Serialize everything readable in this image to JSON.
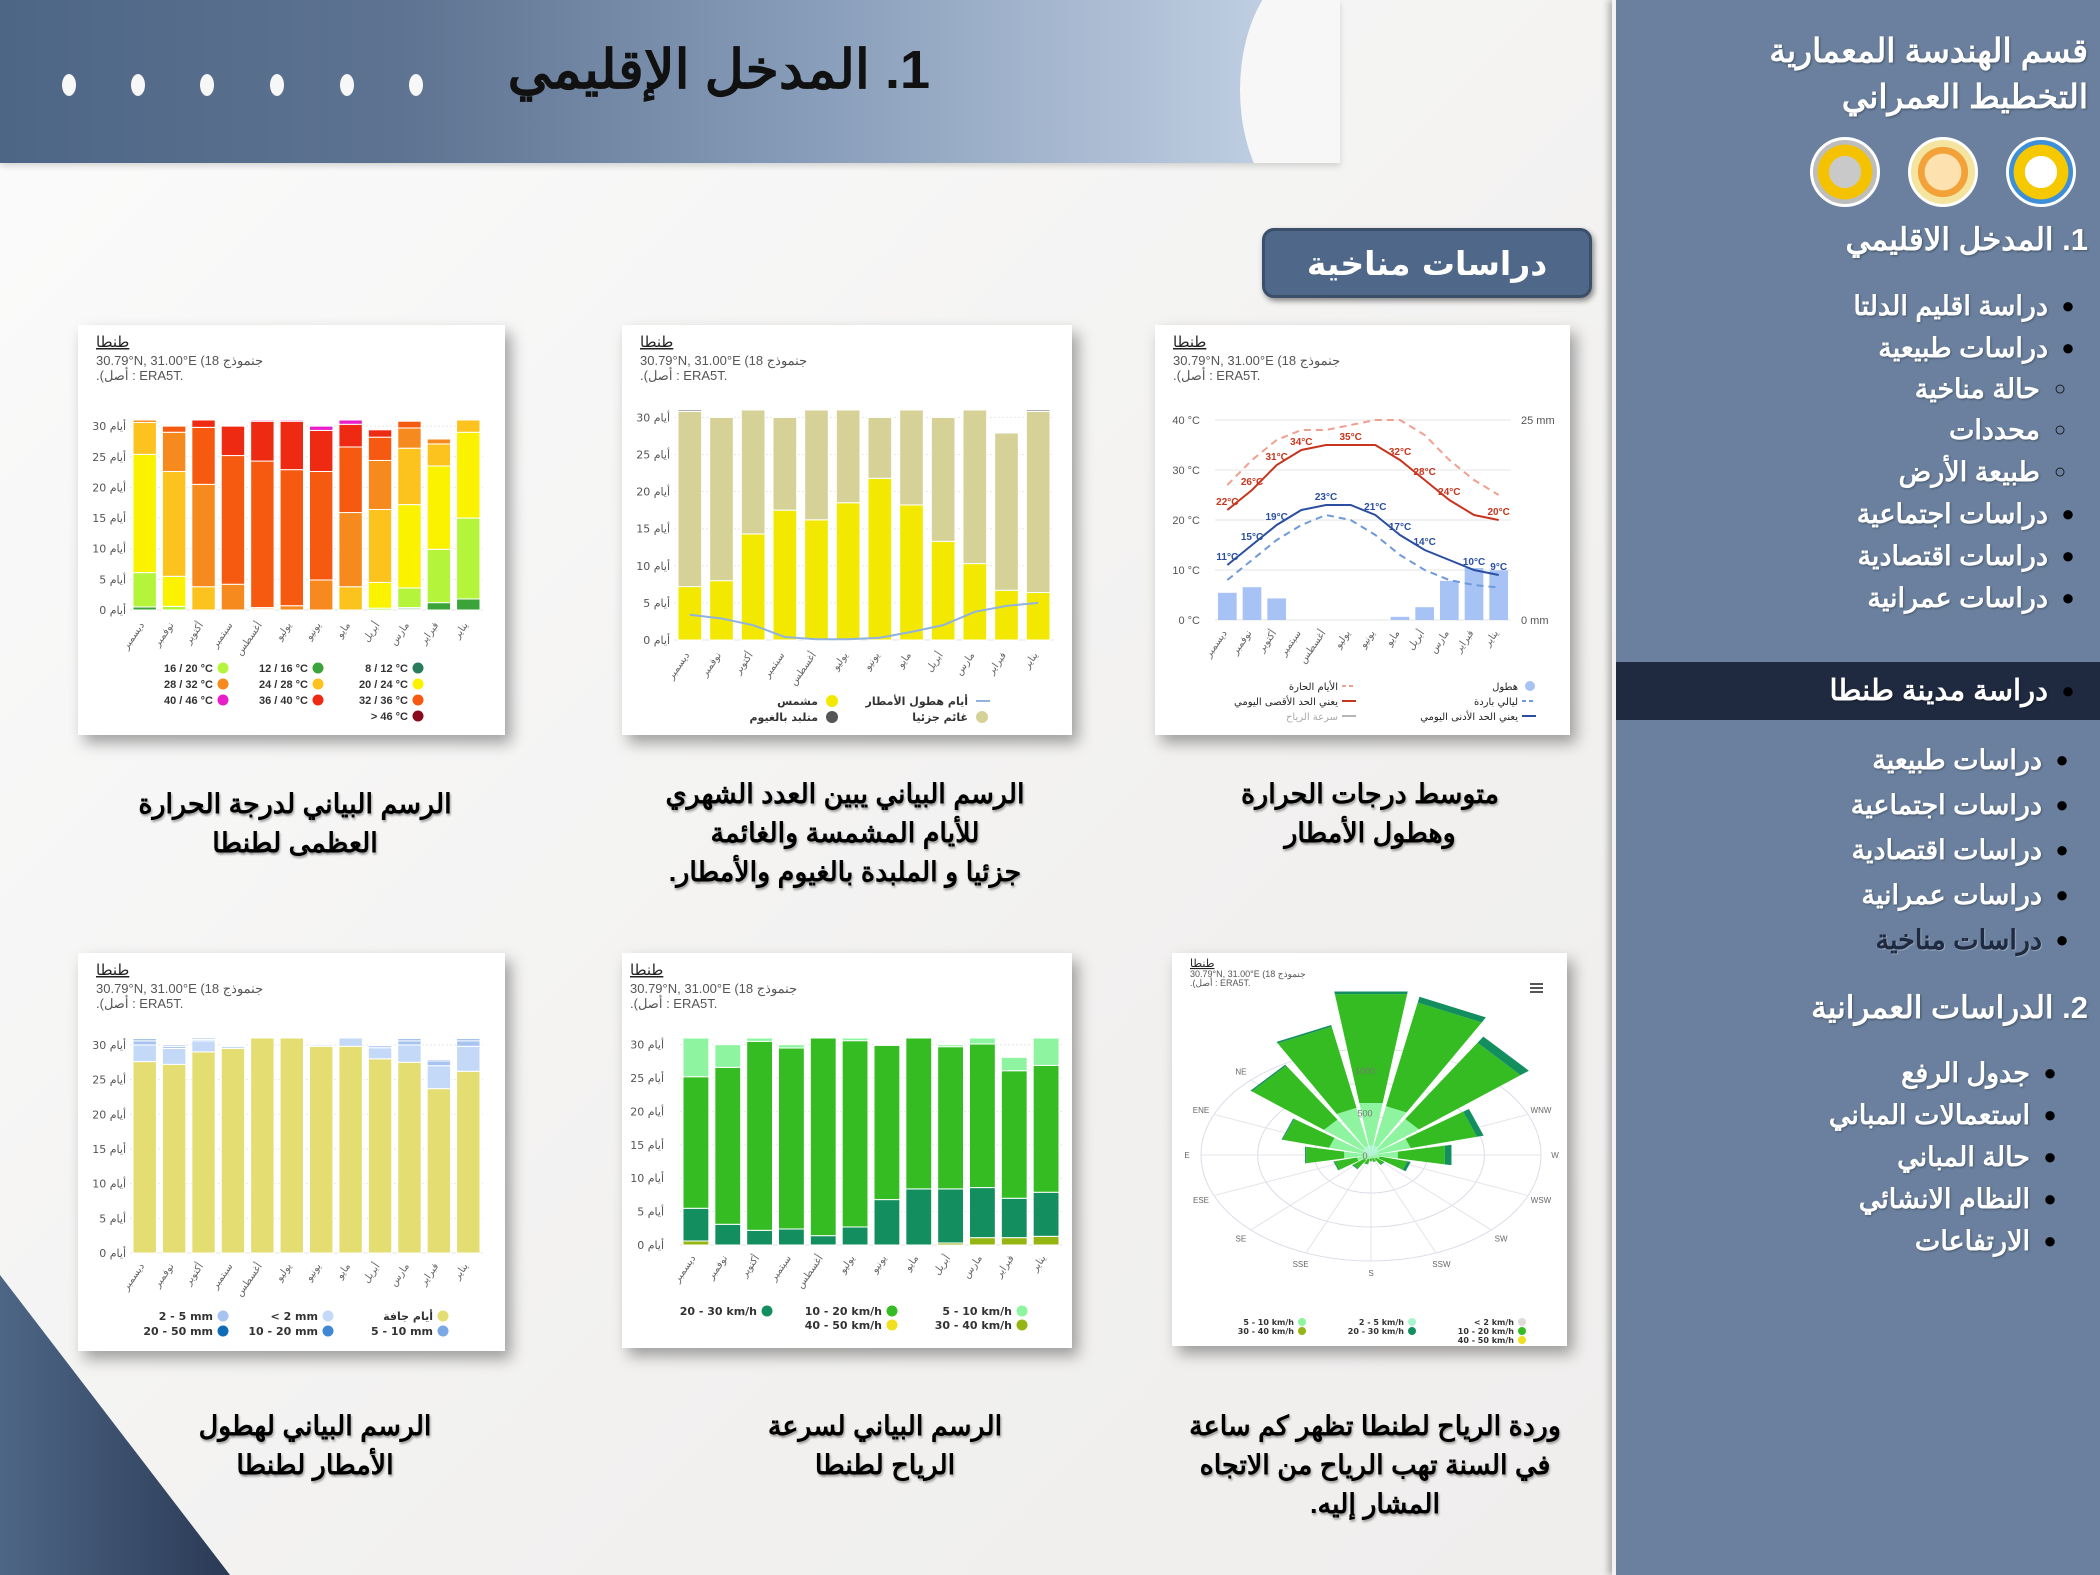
{
  "header": {
    "title": "1.  المدخل الإقليمي",
    "dots": 6
  },
  "badge": {
    "label": "دراسات مناخية"
  },
  "sidebar": {
    "title_line1": "قسم الهندسة المعمارية",
    "title_line2": "التخطيط العمراني",
    "logos": [
      "tanta-university-logo",
      "faculty-logo",
      "engineering-gear-logo"
    ],
    "section1": {
      "heading": "1. المدخل الاقليمي",
      "items": [
        {
          "label": "دراسة اقليم الدلتا",
          "level": 1
        },
        {
          "label": "دراسات طبيعية",
          "level": 1
        },
        {
          "label": "حالة مناخية",
          "level": 2
        },
        {
          "label": "محددات",
          "level": 2
        },
        {
          "label": "طبيعة الأرض",
          "level": 2
        },
        {
          "label": "دراسات اجتماعية",
          "level": 1
        },
        {
          "label": "دراسات اقتصادية",
          "level": 1
        },
        {
          "label": "دراسات عمرانية",
          "level": 1
        }
      ]
    },
    "active_item": "دراسة مدينة طنطا",
    "city_items": [
      {
        "label": "دراسات طبيعية"
      },
      {
        "label": "دراسات اجتماعية"
      },
      {
        "label": "دراسات اقتصادية"
      },
      {
        "label": "دراسات عمرانية"
      },
      {
        "label": "دراسات مناخية",
        "current": true
      }
    ],
    "section2": {
      "heading": "2. الدراسات العمرانية",
      "items": [
        {
          "label": "جدول الرفع"
        },
        {
          "label": "استعمالات المباني"
        },
        {
          "label": "حالة المباني"
        },
        {
          "label": "النظام الانشائي"
        },
        {
          "label": "الارتفاعات"
        }
      ]
    }
  },
  "chart_common": {
    "city": "طنطا",
    "coords_line": "30.79°N, 31.00°E (18 جنموذج",
    "source_line": ".(أصل : ERA5T.",
    "months": [
      "ديسمبر",
      "نوفمبر",
      "أكتوبر",
      "سبتمبر",
      "أغسطس",
      "يوليو",
      "يونيو",
      "مايو",
      "أبريل",
      "مارس",
      "فبراير",
      "يناير"
    ],
    "days_ticks": [
      "0 أيام",
      "5 أيام",
      "10 أيام",
      "15 أيام",
      "20 أيام",
      "25 أيام",
      "30 أيام"
    ]
  },
  "captions": {
    "temp_precip": [
      "متوسط درجات الحرارة",
      "وهطول الأمطار"
    ],
    "cloudy": [
      "الرسم البياني يبين العدد الشهري",
      "للأيام المشمسة والغائمة",
      "جزئيا و الملبدة بالغيوم والأمطار."
    ],
    "max_temp": [
      "الرسم البياني لدرجة الحرارة",
      "العظمى لطنطا"
    ],
    "wind_rose": [
      "وردة الرياح لطنطا تظهر كم ساعة",
      "في السنة تهب الرياح من الاتجاه",
      "المشار إليه."
    ],
    "wind_speed": [
      "الرسم البياني لسرعة",
      "الرياح لطنطا"
    ],
    "precip": [
      "الرسم البياني لهطول",
      "الأمطار لطنطا"
    ]
  },
  "chart_data": [
    {
      "id": "temp_precip",
      "type": "line",
      "title": "طنطا",
      "categories": [
        "ديسمبر",
        "نوفمبر",
        "أكتوبر",
        "سبتمبر",
        "أغسطس",
        "يوليو",
        "يونيو",
        "مايو",
        "أبريل",
        "مارس",
        "فبراير",
        "يناير"
      ],
      "ylabel_left": "°C",
      "ylim_left": [
        0,
        40
      ],
      "yticks_left": [
        "0 °C",
        "10 °C",
        "20 °C",
        "30 °C",
        "40 °C"
      ],
      "ylabel_right": "mm",
      "ylim_right": [
        0,
        25
      ],
      "yticks_right": [
        "0 mm",
        "25 mm"
      ],
      "series": [
        {
          "name": "يعني الحد الأقصى اليومي",
          "type": "line",
          "color": "#c8351e",
          "values": [
            22,
            26,
            31,
            34,
            35,
            35,
            35,
            32,
            28,
            24,
            21,
            20
          ],
          "labels": [
            "22°C",
            "26°C",
            "31°C",
            "34°C",
            "",
            "35°C",
            "",
            "32°C",
            "28°C",
            "24°C",
            "",
            "20°C"
          ]
        },
        {
          "name": "يعني الحد الأدنى اليومي",
          "type": "line",
          "color": "#2a4fa0",
          "values": [
            11,
            15,
            19,
            22,
            23,
            23,
            21,
            17,
            14,
            12,
            10,
            9
          ],
          "labels": [
            "11°C",
            "15°C",
            "19°C",
            "",
            "23°C",
            "",
            "21°C",
            "17°C",
            "14°C",
            "",
            "10°C",
            "9°C"
          ]
        },
        {
          "name": "الأيام الحارة",
          "type": "dashed",
          "color": "#f0a090",
          "values": [
            27,
            32,
            36,
            38,
            38,
            39,
            40,
            40,
            37,
            32,
            28,
            25
          ]
        },
        {
          "name": "ليالي باردة",
          "type": "dashed",
          "color": "#6f9ad8",
          "values": [
            8,
            12,
            16,
            19,
            21,
            20,
            17,
            13,
            10,
            8,
            7,
            6.5
          ]
        },
        {
          "name": "هطول",
          "type": "bar",
          "axis": "right",
          "color": "#a7c3f5",
          "values": [
            3.4,
            4.1,
            2.7,
            0,
            0,
            0,
            0,
            0.4,
            1.6,
            4.9,
            6.5,
            6.2
          ]
        },
        {
          "name": "سرعة الرياح",
          "type": "line",
          "color": "#b0b0b0",
          "values": []
        }
      ],
      "legend": [
        {
          "label": "هطول",
          "swatch": "dot",
          "color": "#a7c3f5"
        },
        {
          "label": "ليالي باردة",
          "swatch": "dash",
          "color": "#6f9ad8"
        },
        {
          "label": "يعني الحد الأدنى اليومي",
          "swatch": "line",
          "color": "#2a4fa0"
        },
        {
          "label": "الأيام الحارة",
          "swatch": "dash",
          "color": "#f0a090"
        },
        {
          "label": "يعني الحد الأقصى اليومي",
          "swatch": "line",
          "color": "#c8351e"
        },
        {
          "label": "سرعة الرياح",
          "swatch": "line",
          "color": "#b5b5b5"
        }
      ]
    },
    {
      "id": "cloudy",
      "type": "bar",
      "stacked": true,
      "title": "طنطا",
      "categories": [
        "ديسمبر",
        "نوفمبر",
        "أكتوبر",
        "سبتمبر",
        "أغسطس",
        "يوليو",
        "يونيو",
        "مايو",
        "أبريل",
        "مارس",
        "فبراير",
        "يناير"
      ],
      "ylim": [
        0,
        31
      ],
      "ylabel": "أيام",
      "series": [
        {
          "name": "مشمس",
          "color": "#f3e800",
          "values": [
            7.2,
            8,
            14.3,
            17.5,
            16.2,
            18.5,
            21.8,
            18.2,
            13.3,
            10.3,
            6.7,
            6.4
          ]
        },
        {
          "name": "غائم جزئيا",
          "color": "#d6d197",
          "values": [
            23.6,
            22,
            16.7,
            12.5,
            14.8,
            12.5,
            8.2,
            12.8,
            16.7,
            20.7,
            21.2,
            24.4
          ]
        },
        {
          "name": "متلبد بالغيوم",
          "color": "#555555",
          "values": [
            0.2,
            0,
            0,
            0,
            0,
            0,
            0,
            0,
            0,
            0,
            0.1,
            0.2
          ]
        },
        {
          "name": "أيام هطول الأمطار",
          "type": "line",
          "color": "#8fb2e0",
          "values": [
            3.4,
            2.9,
            2.0,
            0.4,
            0.1,
            0.1,
            0.3,
            1.1,
            2.0,
            3.8,
            4.6,
            5.0
          ]
        }
      ]
    },
    {
      "id": "max_temp",
      "type": "bar",
      "stacked": true,
      "title": "طنطا",
      "categories": [
        "ديسمبر",
        "نوفمبر",
        "أكتوبر",
        "سبتمبر",
        "أغسطس",
        "يوليو",
        "يونيو",
        "مايو",
        "أبريل",
        "مارس",
        "فبراير",
        "يناير"
      ],
      "ylim": [
        0,
        31
      ],
      "ylabel": "أيام",
      "series": [
        {
          "name": "8 / 12 °C",
          "color": "#2a7a5c",
          "values": [
            0,
            0,
            0,
            0,
            0,
            0,
            0,
            0,
            0,
            0.2,
            0,
            0
          ]
        },
        {
          "name": "12 / 16 °C",
          "color": "#3aa33a",
          "values": [
            0.5,
            0,
            0,
            0,
            0,
            0,
            0,
            0,
            0,
            0.2,
            1.2,
            1.8
          ]
        },
        {
          "name": "16 / 20 °C",
          "color": "#b4f53c",
          "values": [
            5.6,
            0.6,
            0,
            0,
            0,
            0,
            0,
            0,
            0.3,
            3.2,
            8.7,
            13.2
          ]
        },
        {
          "name": "20 / 24 °C",
          "color": "#fbf200",
          "values": [
            19.3,
            4.9,
            0,
            0,
            0,
            0,
            0,
            0,
            4.2,
            13.6,
            13.6,
            14.0
          ]
        },
        {
          "name": "24 / 28 °C",
          "color": "#fcc21e",
          "values": [
            5.2,
            17.1,
            3.8,
            0,
            0.2,
            0,
            0,
            3.8,
            11.9,
            9.2,
            3.6,
            2.0
          ]
        },
        {
          "name": "28 / 32 °C",
          "color": "#f68a1e",
          "values": [
            0.4,
            6.4,
            16.7,
            4.2,
            0.2,
            0.7,
            4.9,
            12.1,
            8.0,
            3.3,
            0.8,
            0
          ]
        },
        {
          "name": "32 / 36 °C",
          "color": "#f65a10",
          "values": [
            0,
            1.0,
            9.3,
            21.0,
            23.9,
            22.2,
            17.7,
            10.7,
            3.8,
            1.1,
            0,
            0
          ]
        },
        {
          "name": "36 / 40 °C",
          "color": "#ee2a12",
          "values": [
            0,
            0,
            1.2,
            4.8,
            6.5,
            7.9,
            6.7,
            3.7,
            1.2,
            0,
            0,
            0
          ]
        },
        {
          "name": "40 / 46 °C",
          "color": "#e81ec8",
          "values": [
            0,
            0,
            0,
            0,
            0.2,
            0.2,
            0.7,
            0.7,
            0,
            0,
            0,
            0
          ]
        },
        {
          "name": "> 46 °C",
          "color": "#8a0a1c",
          "values": [
            0,
            0,
            0,
            0,
            0,
            0,
            0,
            0,
            0,
            0,
            0,
            0
          ]
        }
      ]
    },
    {
      "id": "precip",
      "type": "bar",
      "stacked": true,
      "title": "طنطا",
      "categories": [
        "ديسمبر",
        "نوفمبر",
        "أكتوبر",
        "سبتمبر",
        "أغسطس",
        "يوليو",
        "يونيو",
        "مايو",
        "أبريل",
        "مارس",
        "فبراير",
        "يناير"
      ],
      "ylim": [
        0,
        31
      ],
      "ylabel": "أيام",
      "series": [
        {
          "name": "أيام جافة",
          "color": "#e3dd72",
          "values": [
            27.6,
            27.2,
            29.0,
            29.5,
            31.0,
            31.0,
            29.8,
            29.8,
            28.0,
            27.5,
            23.7,
            26.2
          ]
        },
        {
          "name": "< 2 mm",
          "color": "#c3d9f7",
          "values": [
            2.4,
            2.3,
            1.6,
            0.3,
            0,
            0,
            0.2,
            1.2,
            1.6,
            2.5,
            3.3,
            3.6
          ]
        },
        {
          "name": "2 - 5 mm",
          "color": "#a7c3f0",
          "values": [
            0.6,
            0.3,
            0.2,
            0.1,
            0,
            0,
            0,
            0,
            0.3,
            0.6,
            0.7,
            0.8
          ]
        },
        {
          "name": "5 - 10 mm",
          "color": "#7aa8e4",
          "values": [
            0.3,
            0.2,
            0.2,
            0.1,
            0,
            0,
            0,
            0,
            0.1,
            0.3,
            0.2,
            0.3
          ]
        },
        {
          "name": "10 - 20 mm",
          "color": "#3f86d3",
          "values": [
            0.1,
            0,
            0,
            0,
            0,
            0,
            0,
            0,
            0,
            0.1,
            0.1,
            0.1
          ]
        },
        {
          "name": "20 - 50 mm",
          "color": "#0e6bb8",
          "values": [
            0,
            0,
            0,
            0,
            0,
            0,
            0,
            0,
            0,
            0,
            0,
            0
          ]
        }
      ]
    },
    {
      "id": "wind_speed",
      "type": "bar",
      "stacked": true,
      "title": "طنطا",
      "categories": [
        "ديسمبر",
        "نوفمبر",
        "أكتوبر",
        "سبتمبر",
        "أغسطس",
        "يوليو",
        "يونيو",
        "مايو",
        "أبريل",
        "مارس",
        "فبراير",
        "يناير"
      ],
      "ylim": [
        0,
        31
      ],
      "ylabel": "أيام",
      "series": [
        {
          "name": "30 - 40 km/h",
          "color": "#94b512",
          "values": [
            0.6,
            0,
            0,
            0,
            0,
            0,
            0,
            0,
            0.3,
            1.1,
            1.1,
            1.3
          ]
        },
        {
          "name": "20 - 30 km/h",
          "color": "#138f5f",
          "values": [
            4.9,
            3.1,
            2.2,
            2.4,
            1.4,
            2.7,
            6.8,
            8.4,
            8.1,
            7.5,
            5.9,
            6.6
          ]
        },
        {
          "name": "10 - 20 km/h",
          "color": "#34bc22",
          "values": [
            19.7,
            23.5,
            28.3,
            27.1,
            29.6,
            27.9,
            23.1,
            22.6,
            21.3,
            21.5,
            19.1,
            19.0
          ]
        },
        {
          "name": "5 - 10 km/h",
          "color": "#8ef4a0",
          "values": [
            5.8,
            3.4,
            0.5,
            0.5,
            0,
            0.4,
            0.1,
            0,
            0.3,
            0.9,
            2.0,
            4.1
          ]
        },
        {
          "name": "40 - 50 km/h",
          "color": "#f0e020",
          "values": [
            0,
            0,
            0,
            0,
            0,
            0,
            0,
            0,
            0,
            0,
            0,
            0
          ]
        }
      ]
    },
    {
      "id": "wind_rose",
      "type": "polar-bar",
      "title": "طنطا",
      "directions": [
        "N",
        "NNW",
        "NW",
        "WNW",
        "W",
        "WSW",
        "SW",
        "SSW",
        "S",
        "SSE",
        "SE",
        "ESE",
        "E",
        "ENE",
        "NE",
        "NNE"
      ],
      "rings": [
        "0",
        "500",
        "1000"
      ],
      "series": [
        {
          "name": "2 - 5 km/h",
          "color": "#a9f5cf",
          "values": [
            120,
            110,
            90,
            60,
            40,
            20,
            15,
            10,
            10,
            10,
            15,
            20,
            40,
            60,
            90,
            110
          ]
        },
        {
          "name": "5 - 10 km/h",
          "color": "#8ef4a0",
          "values": [
            500,
            480,
            430,
            300,
            200,
            60,
            40,
            30,
            30,
            40,
            60,
            110,
            200,
            320,
            420,
            460
          ]
        },
        {
          "name": "10 - 20 km/h",
          "color": "#34bc22",
          "values": [
            1300,
            1250,
            1100,
            600,
            420,
            250,
            80,
            40,
            30,
            60,
            120,
            200,
            340,
            420,
            780,
            980
          ]
        },
        {
          "name": "20 - 30 km/h",
          "color": "#138f5f",
          "values": [
            30,
            70,
            90,
            60,
            60,
            30,
            10,
            5,
            5,
            5,
            10,
            10,
            10,
            10,
            15,
            20
          ]
        },
        {
          "name": "< 2 km/h",
          "color": "#dddad8",
          "values": []
        },
        {
          "name": "30 - 40 km/h",
          "color": "#94b512",
          "values": []
        },
        {
          "name": "40 - 50 km/h",
          "color": "#f0e020",
          "values": []
        }
      ]
    }
  ]
}
